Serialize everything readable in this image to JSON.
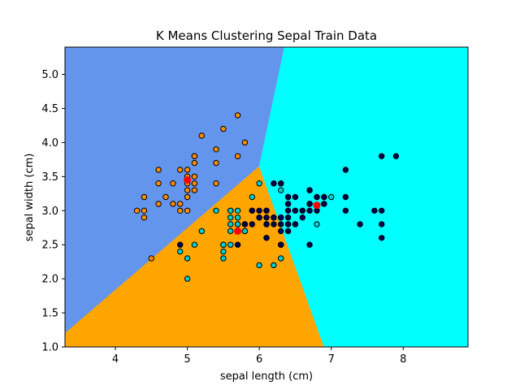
{
  "chart_data": {
    "type": "scatter",
    "title": "K Means Clustering Sepal Train Data",
    "xlabel": "sepal length (cm)",
    "ylabel": "sepal width (cm)",
    "xlim": [
      3.3,
      8.9
    ],
    "ylim": [
      1.0,
      5.4
    ],
    "xticks": [
      "4",
      "5",
      "6",
      "7",
      "8"
    ],
    "xtick_values": [
      4,
      5,
      6,
      7,
      8
    ],
    "yticks": [
      "1.0",
      "1.5",
      "2.0",
      "2.5",
      "3.0",
      "3.5",
      "4.0",
      "4.5",
      "5.0"
    ],
    "ytick_values": [
      1.0,
      1.5,
      2.0,
      2.5,
      3.0,
      3.5,
      4.0,
      4.5,
      5.0
    ],
    "grid": false,
    "regions": [
      {
        "cluster": "blue",
        "color": "#6495ED",
        "polygon": [
          [
            3.3,
            1.2
          ],
          [
            6.0,
            3.65
          ],
          [
            6.35,
            5.4
          ],
          [
            3.3,
            5.4
          ]
        ]
      },
      {
        "cluster": "orange",
        "color": "#FFA500",
        "polygon": [
          [
            3.3,
            1.0
          ],
          [
            6.9,
            1.0
          ],
          [
            6.0,
            3.65
          ],
          [
            3.3,
            1.2
          ]
        ]
      },
      {
        "cluster": "cyan",
        "color": "#00FFFF",
        "polygon": [
          [
            6.0,
            3.65
          ],
          [
            6.9,
            1.0
          ],
          [
            8.9,
            1.0
          ],
          [
            8.9,
            5.4
          ],
          [
            6.35,
            5.4
          ]
        ]
      }
    ],
    "series": [
      {
        "color": "#FF8C00",
        "points": [
          [
            5.1,
            3.5
          ],
          [
            4.9,
            3.0
          ],
          [
            4.7,
            3.2
          ],
          [
            4.6,
            3.1
          ],
          [
            5.0,
            3.6
          ],
          [
            5.4,
            3.9
          ],
          [
            4.6,
            3.4
          ],
          [
            5.0,
            3.4
          ],
          [
            4.4,
            2.9
          ],
          [
            4.9,
            3.1
          ],
          [
            5.4,
            3.7
          ],
          [
            4.8,
            3.4
          ],
          [
            4.3,
            3.0
          ],
          [
            5.8,
            4.0
          ],
          [
            5.7,
            4.4
          ],
          [
            5.1,
            3.8
          ],
          [
            5.7,
            3.8
          ],
          [
            5.4,
            3.4
          ],
          [
            5.1,
            3.7
          ],
          [
            4.6,
            3.6
          ],
          [
            5.1,
            3.3
          ],
          [
            5.0,
            3.0
          ],
          [
            5.2,
            4.1
          ],
          [
            5.5,
            4.2
          ],
          [
            4.4,
            3.2
          ],
          [
            4.8,
            3.1
          ],
          [
            5.0,
            3.2
          ],
          [
            5.1,
            3.4
          ],
          [
            5.0,
            3.3
          ],
          [
            4.9,
            3.6
          ],
          [
            4.4,
            3.0
          ],
          [
            5.1,
            3.8
          ],
          [
            5.0,
            3.5
          ],
          [
            4.5,
            2.3
          ]
        ]
      },
      {
        "color": "#00CED1",
        "points": [
          [
            5.5,
            2.3
          ],
          [
            5.7,
            2.8
          ],
          [
            4.9,
            2.4
          ],
          [
            5.2,
            2.7
          ],
          [
            5.0,
            2.0
          ],
          [
            5.9,
            3.0
          ],
          [
            6.0,
            2.2
          ],
          [
            5.6,
            2.9
          ],
          [
            5.6,
            3.0
          ],
          [
            5.8,
            2.7
          ],
          [
            5.6,
            2.5
          ],
          [
            5.9,
            3.2
          ],
          [
            6.1,
            2.8
          ],
          [
            5.5,
            2.4
          ],
          [
            5.5,
            2.5
          ],
          [
            5.8,
            2.7
          ],
          [
            5.4,
            3.0
          ],
          [
            6.0,
            3.4
          ],
          [
            5.6,
            3.0
          ],
          [
            5.5,
            2.5
          ],
          [
            5.0,
            2.3
          ],
          [
            5.6,
            2.7
          ],
          [
            5.7,
            3.0
          ],
          [
            5.7,
            2.9
          ],
          [
            5.1,
            2.5
          ],
          [
            5.7,
            2.8
          ],
          [
            6.3,
            3.3
          ],
          [
            6.2,
            2.2
          ],
          [
            6.3,
            2.3
          ],
          [
            6.1,
            3.0
          ],
          [
            6.8,
            2.8
          ],
          [
            6.7,
            3.1
          ],
          [
            6.6,
            3.0
          ],
          [
            6.5,
            2.8
          ],
          [
            7.0,
            3.2
          ],
          [
            6.0,
            2.9
          ],
          [
            5.8,
            2.8
          ],
          [
            5.6,
            2.8
          ]
        ]
      },
      {
        "color": "#000050",
        "points": [
          [
            6.4,
            3.2
          ],
          [
            6.9,
            3.1
          ],
          [
            6.5,
            2.8
          ],
          [
            6.3,
            2.5
          ],
          [
            6.6,
            2.9
          ],
          [
            6.7,
            3.1
          ],
          [
            6.2,
            2.9
          ],
          [
            6.1,
            2.6
          ],
          [
            6.2,
            3.4
          ],
          [
            6.3,
            3.4
          ],
          [
            6.4,
            3.1
          ],
          [
            6.0,
            3.0
          ],
          [
            6.9,
            3.1
          ],
          [
            6.7,
            3.1
          ],
          [
            6.9,
            3.2
          ],
          [
            6.8,
            3.2
          ],
          [
            6.7,
            3.3
          ],
          [
            6.7,
            3.0
          ],
          [
            6.3,
            2.5
          ],
          [
            6.5,
            3.0
          ],
          [
            6.2,
            3.4
          ],
          [
            5.9,
            3.0
          ],
          [
            7.2,
            3.6
          ],
          [
            6.5,
            3.2
          ],
          [
            6.4,
            2.7
          ],
          [
            6.8,
            3.0
          ],
          [
            6.4,
            3.2
          ],
          [
            7.7,
            3.8
          ],
          [
            7.7,
            2.6
          ],
          [
            6.9,
            3.2
          ],
          [
            7.7,
            2.8
          ],
          [
            6.7,
            3.3
          ],
          [
            7.2,
            3.2
          ],
          [
            6.2,
            2.8
          ],
          [
            6.1,
            3.0
          ],
          [
            6.4,
            2.8
          ],
          [
            7.2,
            3.0
          ],
          [
            7.4,
            2.8
          ],
          [
            7.9,
            3.8
          ],
          [
            6.4,
            2.8
          ],
          [
            6.3,
            2.8
          ],
          [
            6.1,
            2.6
          ],
          [
            7.7,
            3.0
          ],
          [
            6.3,
            3.4
          ],
          [
            6.4,
            3.1
          ],
          [
            6.9,
            3.1
          ],
          [
            6.7,
            3.1
          ],
          [
            6.8,
            3.2
          ],
          [
            6.7,
            2.5
          ],
          [
            6.5,
            3.0
          ],
          [
            7.6,
            3.0
          ],
          [
            6.3,
            2.9
          ],
          [
            6.1,
            2.9
          ],
          [
            6.0,
            2.9
          ],
          [
            6.4,
            2.9
          ],
          [
            5.8,
            2.8
          ],
          [
            5.7,
            2.5
          ],
          [
            5.9,
            2.8
          ],
          [
            4.9,
            2.5
          ],
          [
            6.2,
            2.9
          ],
          [
            6.3,
            2.7
          ],
          [
            6.4,
            3.0
          ],
          [
            6.1,
            2.8
          ],
          [
            6.3,
            2.9
          ],
          [
            6.6,
            3.0
          ]
        ]
      }
    ],
    "centroids": {
      "color": "#FF0000",
      "points": [
        [
          5.0,
          3.45
        ],
        [
          5.7,
          2.7
        ],
        [
          6.8,
          3.08
        ]
      ]
    }
  }
}
